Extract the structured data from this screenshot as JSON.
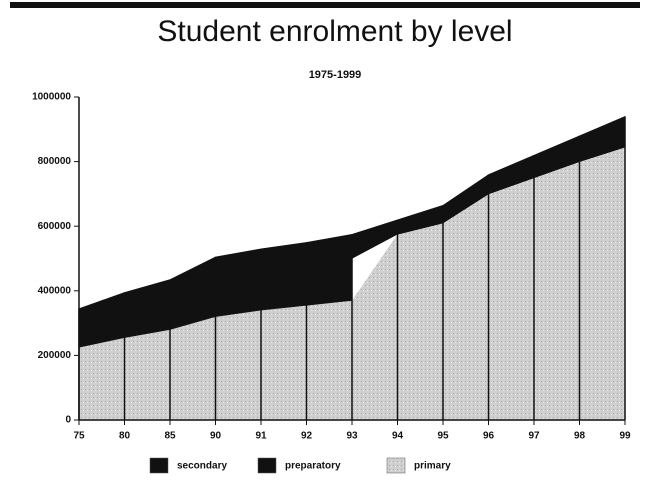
{
  "chart_data": {
    "type": "stacked-area",
    "title": "Student enrolment by level",
    "subtitle": "1975-1999",
    "categories": [
      "75",
      "80",
      "85",
      "90",
      "91",
      "92",
      "93",
      "94",
      "95",
      "96",
      "97",
      "98",
      "99"
    ],
    "series": [
      {
        "name": "primary",
        "color": "#cfcfcf",
        "values": [
          225000,
          255000,
          280000,
          320000,
          340000,
          355000,
          370000,
          575000,
          610000,
          700000,
          750000,
          800000,
          845000
        ]
      },
      {
        "name": "preparatory",
        "color": "#111111",
        "values": [
          70000,
          80000,
          90000,
          110000,
          115000,
          120000,
          130000,
          0,
          0,
          0,
          0,
          0,
          0
        ]
      },
      {
        "name": "secondary",
        "color": "#111111",
        "values": [
          50000,
          60000,
          65000,
          75000,
          75000,
          75000,
          75000,
          45000,
          55000,
          60000,
          70000,
          80000,
          95000
        ]
      }
    ],
    "legend_order": [
      "secondary",
      "preparatory",
      "primary"
    ],
    "ylim": [
      0,
      1000000
    ],
    "yticks": [
      0,
      200000,
      400000,
      600000,
      800000,
      1000000
    ]
  }
}
